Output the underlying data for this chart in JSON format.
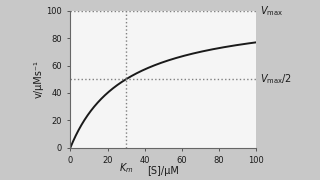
{
  "vmax": 100,
  "km": 30,
  "s_max": 100,
  "v_max_display": 100,
  "xlabel": "[S]/μM",
  "ylabel": "v/μMs⁻¹",
  "km_label": "$K_m$",
  "vmax_label": "$V_{\\mathrm{max}}$",
  "vmax_half_label": "$V_{\\mathrm{max}}/2$",
  "curve_color": "#1a1a1a",
  "dotted_color": "#808080",
  "figure_bg": "#c8c8c8",
  "plot_bg": "#f5f5f5",
  "text_color": "#1a1a1a",
  "xticks": [
    0,
    20,
    40,
    60,
    80,
    100
  ],
  "yticks": [
    0,
    20,
    40,
    60,
    80,
    100
  ],
  "figsize": [
    3.2,
    1.8
  ],
  "dpi": 100
}
